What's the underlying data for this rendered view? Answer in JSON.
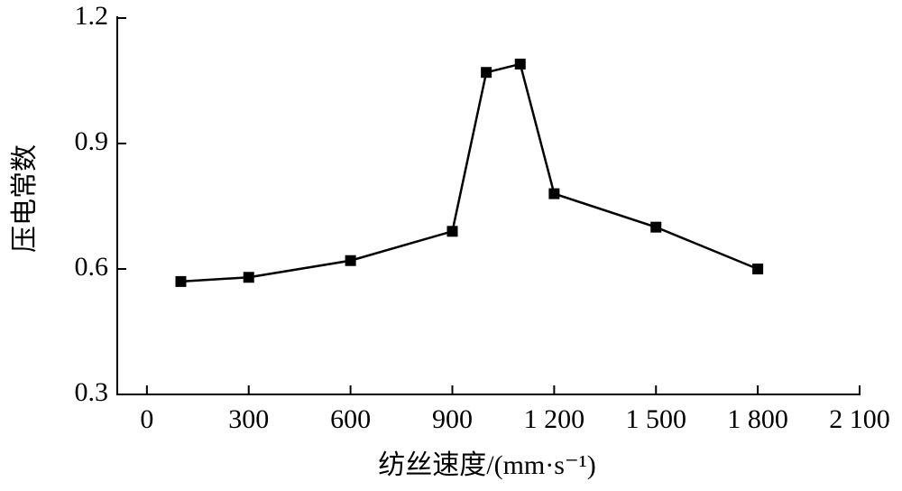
{
  "chart_data": {
    "type": "line",
    "x_label": "纺丝速度/(mm·s⁻¹)",
    "y_label": "压电常数",
    "x": [
      100,
      300,
      600,
      900,
      1000,
      1100,
      1200,
      1500,
      1800
    ],
    "series": [
      {
        "color": "#000000",
        "values": [
          0.57,
          0.58,
          0.62,
          0.69,
          1.07,
          1.09,
          0.78,
          0.7,
          0.6
        ]
      }
    ],
    "xlim": [
      -90,
      2100
    ],
    "xticks": [
      0,
      300,
      600,
      900,
      {
        "value": 1200,
        "label": "1 200"
      },
      {
        "value": 1500,
        "label": "1 500"
      },
      {
        "value": 1800,
        "label": "1 800"
      },
      {
        "value": 2100,
        "label": "2 100"
      }
    ],
    "ylim": [
      0.3,
      1.2
    ],
    "yticks": [
      0.3,
      0.6,
      0.9,
      1.2
    ]
  }
}
